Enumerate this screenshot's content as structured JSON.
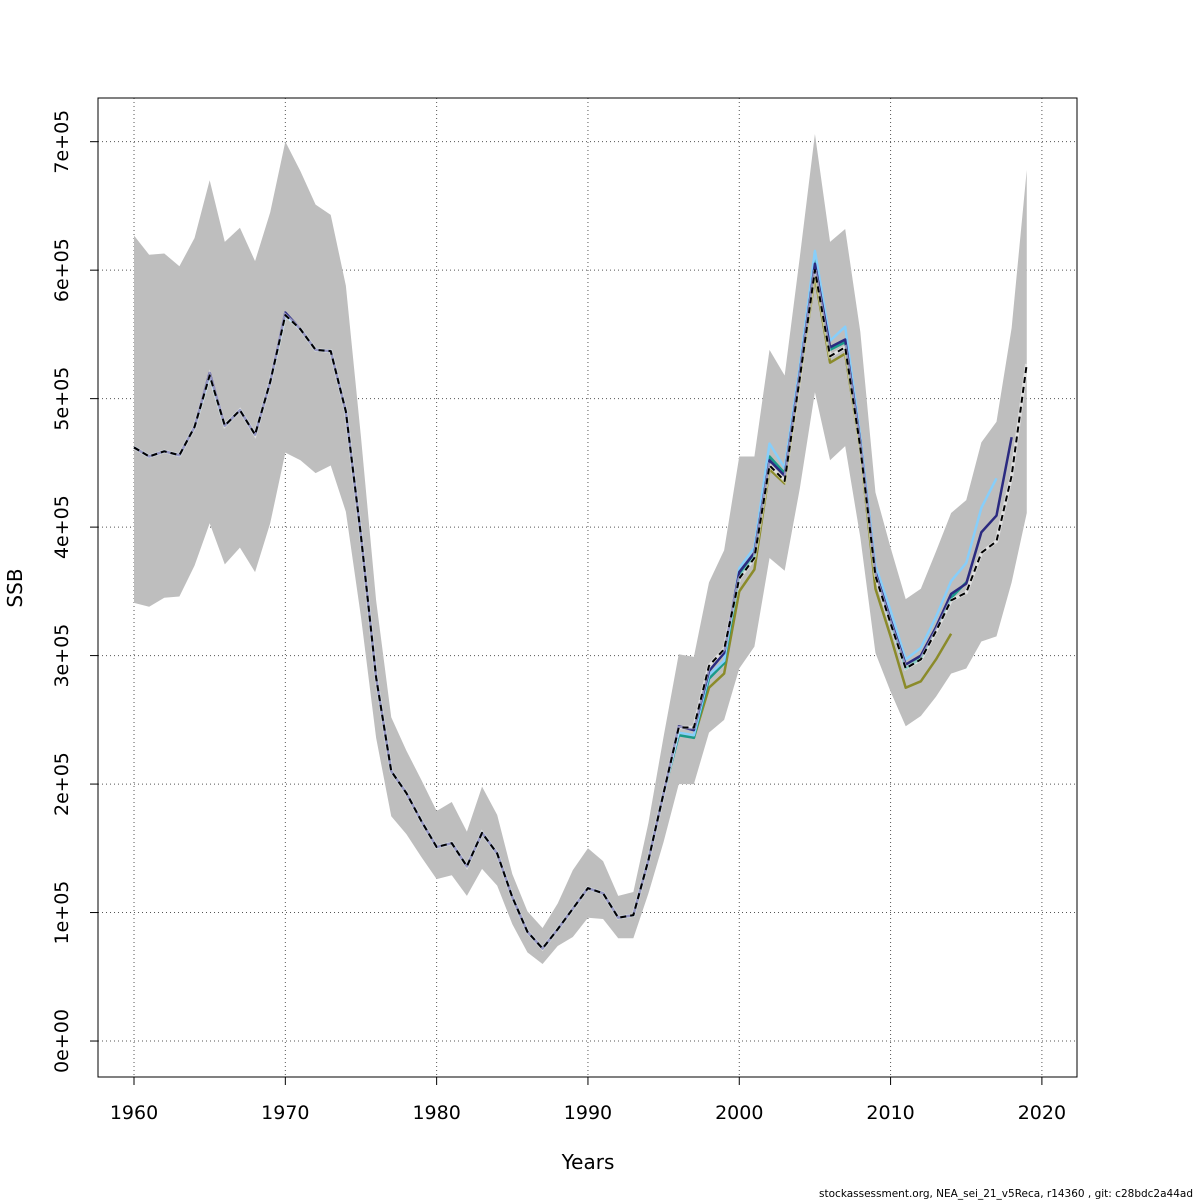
{
  "chart_data": {
    "type": "line",
    "xlabel": "Years",
    "ylabel": "SSB",
    "footer": "stockassessment.org, NEA_sei_21_v5Reca, r14360 , git: c28bdc2a44ad",
    "x": [
      1960,
      1961,
      1962,
      1963,
      1964,
      1965,
      1966,
      1967,
      1968,
      1969,
      1970,
      1971,
      1972,
      1973,
      1974,
      1975,
      1976,
      1977,
      1978,
      1979,
      1980,
      1981,
      1982,
      1983,
      1984,
      1985,
      1986,
      1987,
      1988,
      1989,
      1990,
      1991,
      1992,
      1993,
      1994,
      1995,
      1996,
      1997,
      1998,
      1999,
      2000,
      2001,
      2002,
      2003,
      2004,
      2005,
      2006,
      2007,
      2008,
      2009,
      2010,
      2011,
      2012,
      2013,
      2014,
      2015,
      2016,
      2017,
      2018,
      2019
    ],
    "band": {
      "color": "#bebebe",
      "upper": [
        627000,
        612000,
        613000,
        603000,
        625000,
        670000,
        622000,
        633000,
        607000,
        645000,
        700000,
        677000,
        651000,
        643000,
        588000,
        470000,
        343000,
        252000,
        226000,
        203000,
        179000,
        186000,
        163000,
        198000,
        176000,
        130000,
        101000,
        88000,
        107000,
        133000,
        150000,
        140000,
        113000,
        116000,
        170000,
        237000,
        301000,
        299000,
        357000,
        382000,
        455000,
        455000,
        538000,
        518000,
        610000,
        706000,
        622000,
        632000,
        552000,
        427000,
        384000,
        344000,
        352000,
        381000,
        411000,
        421000,
        466000,
        482000,
        555000,
        678000
      ],
      "lower": [
        341000,
        338000,
        345000,
        346000,
        370000,
        403000,
        371000,
        384000,
        365000,
        403000,
        458000,
        452000,
        442000,
        448000,
        412000,
        330000,
        236000,
        175000,
        161000,
        143000,
        126000,
        129000,
        113000,
        134000,
        121000,
        91000,
        69000,
        60000,
        74000,
        81000,
        96000,
        95000,
        80000,
        80000,
        115000,
        155000,
        200000,
        200000,
        240000,
        250000,
        290000,
        307000,
        376000,
        366000,
        430000,
        505000,
        452000,
        463000,
        392000,
        302000,
        272000,
        245000,
        253000,
        268000,
        286000,
        290000,
        311000,
        315000,
        357000,
        411000
      ]
    },
    "series": [
      {
        "color": "#8b8b2a",
        "values": [
          462000,
          455000,
          459000,
          456000,
          478000,
          518000,
          479000,
          491000,
          472000,
          513000,
          565000,
          554000,
          538000,
          537000,
          490000,
          393000,
          283000,
          210000,
          193000,
          171000,
          151000,
          154000,
          136000,
          162000,
          146000,
          112000,
          85000,
          72000,
          87000,
          103000,
          119000,
          115000,
          96000,
          98000,
          141000,
          193000,
          240000,
          236000,
          275000,
          286000,
          350000,
          367000,
          445000,
          434000,
          515000,
          595000,
          528000,
          535000,
          460000,
          352000,
          315000,
          275000,
          280000,
          297000,
          317000,
          null,
          null,
          null,
          null,
          null
        ]
      },
      {
        "color": "#1a9a8a",
        "values": [
          462000,
          455000,
          459000,
          456000,
          478000,
          518000,
          479000,
          491000,
          472000,
          513000,
          565000,
          554000,
          538000,
          537000,
          490000,
          393000,
          283000,
          210000,
          193000,
          171000,
          151000,
          154000,
          136000,
          162000,
          146000,
          112000,
          85000,
          72000,
          87000,
          103000,
          119000,
          115000,
          96000,
          98000,
          141000,
          193000,
          238000,
          236000,
          282000,
          294000,
          362000,
          378000,
          455000,
          442000,
          520000,
          610000,
          538000,
          544000,
          468000,
          366000,
          326000,
          290000,
          298000,
          322000,
          345000,
          357000,
          null,
          null,
          null,
          null
        ]
      },
      {
        "color": "#87cefa",
        "values": [
          462000,
          455000,
          459000,
          456000,
          478000,
          518000,
          479000,
          491000,
          472000,
          513000,
          565000,
          554000,
          538000,
          537000,
          490000,
          393000,
          283000,
          210000,
          193000,
          171000,
          151000,
          154000,
          136000,
          162000,
          146000,
          112000,
          85000,
          72000,
          87000,
          103000,
          119000,
          115000,
          96000,
          98000,
          141000,
          193000,
          240000,
          238000,
          285000,
          296000,
          368000,
          384000,
          465000,
          446000,
          525000,
          615000,
          545000,
          556000,
          470000,
          370000,
          335000,
          297000,
          306000,
          330000,
          358000,
          372000,
          415000,
          438000,
          null,
          null
        ]
      },
      {
        "color": "#2b2a80",
        "values": [
          462000,
          455000,
          459000,
          456000,
          478000,
          520000,
          479000,
          491000,
          472000,
          513000,
          567000,
          554000,
          538000,
          537000,
          490000,
          393000,
          283000,
          210000,
          193000,
          171000,
          151000,
          154000,
          136000,
          162000,
          146000,
          112000,
          85000,
          72000,
          87000,
          103000,
          119000,
          115000,
          96000,
          98000,
          141000,
          193000,
          245000,
          242000,
          288000,
          302000,
          365000,
          380000,
          452000,
          440000,
          520000,
          605000,
          540000,
          546000,
          466000,
          365000,
          328000,
          293000,
          300000,
          322000,
          348000,
          356000,
          396000,
          409000,
          470000,
          null
        ]
      },
      {
        "color": "#000000",
        "dashed": true,
        "values": [
          462000,
          455000,
          459000,
          456000,
          478000,
          518000,
          479000,
          491000,
          472000,
          513000,
          565000,
          554000,
          538000,
          537000,
          490000,
          393000,
          283000,
          210000,
          193000,
          171000,
          151000,
          154000,
          136000,
          162000,
          146000,
          112000,
          85000,
          72000,
          87000,
          103000,
          119000,
          115000,
          96000,
          98000,
          141000,
          193000,
          244000,
          244000,
          292000,
          305000,
          360000,
          376000,
          448000,
          436000,
          516000,
          600000,
          533000,
          540000,
          462000,
          362000,
          325000,
          290000,
          297000,
          319000,
          343000,
          349000,
          380000,
          389000,
          440000,
          527000
        ]
      }
    ],
    "xlim": [
      1957.62,
      2022.32
    ],
    "ylim": [
      -28000,
      734000
    ],
    "xticks": [
      1960,
      1970,
      1980,
      1990,
      2000,
      2010,
      2020
    ],
    "yticks": [
      {
        "value": 0,
        "label": "0e+00"
      },
      {
        "value": 100000,
        "label": "1e+05"
      },
      {
        "value": 200000,
        "label": "2e+05"
      },
      {
        "value": 300000,
        "label": "3e+05"
      },
      {
        "value": 400000,
        "label": "4e+05"
      },
      {
        "value": 500000,
        "label": "5e+05"
      },
      {
        "value": 600000,
        "label": "6e+05"
      },
      {
        "value": 700000,
        "label": "7e+05"
      }
    ],
    "grid": true
  }
}
